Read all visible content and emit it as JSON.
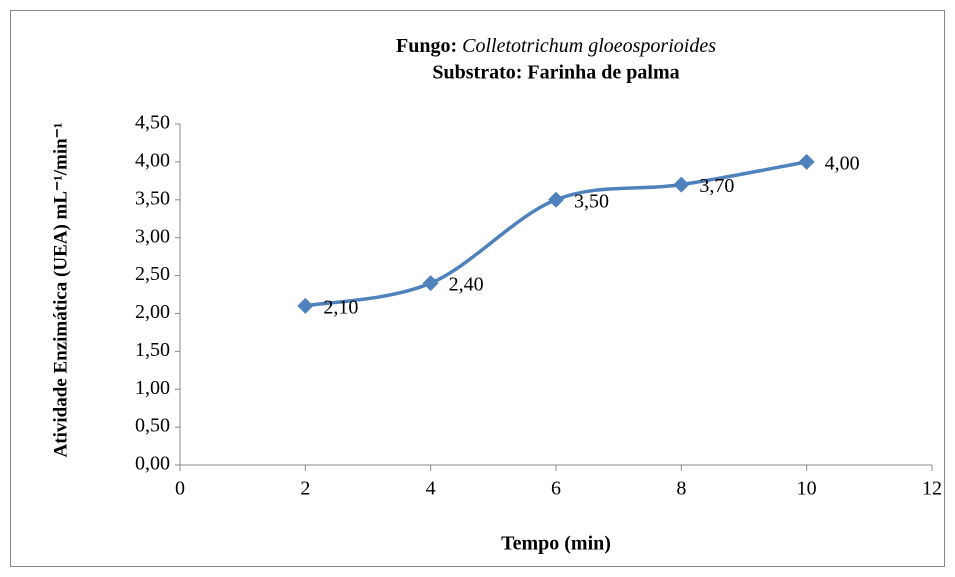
{
  "chart_data": {
    "type": "line",
    "title": [
      "Fungo:",
      "Colletotrichum gloeosporioides"
    ],
    "subtitle": "Substrato: Farinha de palma",
    "x_label": "Tempo (min)",
    "y_label": "Atividade Enzimática (UEA) mL⁻¹/min⁻¹",
    "x": [
      2,
      4,
      6,
      8,
      10
    ],
    "values": [
      2.1,
      2.4,
      3.5,
      3.7,
      4.0
    ],
    "value_labels": [
      "2,10",
      "2,40",
      "3,50",
      "3,70",
      "4,00"
    ],
    "color": "#4f81bd",
    "smooth": true,
    "grid": false,
    "xlim": [
      0,
      12
    ],
    "xticks": [
      0,
      2,
      4,
      6,
      8,
      10,
      12
    ],
    "ylim": [
      0,
      4.5
    ],
    "yticks": [
      {
        "value": 0,
        "label": "0,00"
      },
      {
        "value": 0.5,
        "label": "0,50"
      },
      {
        "value": 1,
        "label": "1,00"
      },
      {
        "value": 1.5,
        "label": "1,50"
      },
      {
        "value": 2,
        "label": "2,00"
      },
      {
        "value": 2.5,
        "label": "2,50"
      },
      {
        "value": 3,
        "label": "3,00"
      },
      {
        "value": 3.5,
        "label": "3,50"
      },
      {
        "value": 4,
        "label": "4,00"
      },
      {
        "value": 4.5,
        "label": "4,50"
      }
    ]
  }
}
